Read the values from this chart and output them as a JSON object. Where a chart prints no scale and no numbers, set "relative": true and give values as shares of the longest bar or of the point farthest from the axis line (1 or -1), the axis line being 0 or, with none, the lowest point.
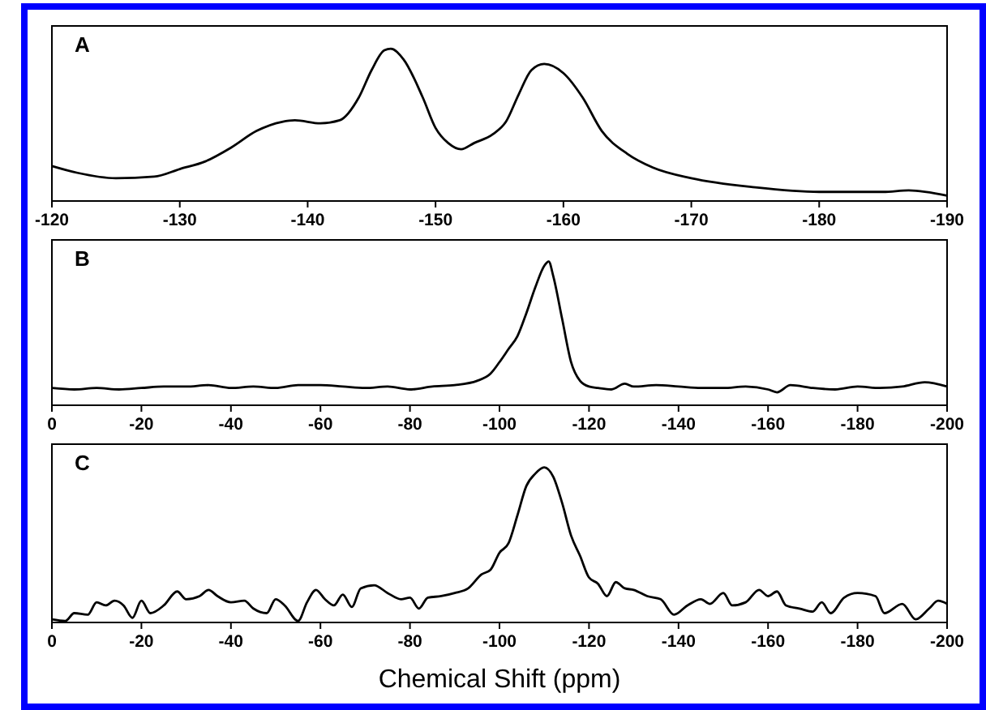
{
  "chart_data": [
    {
      "type": "line",
      "title": "A",
      "relative": true,
      "xlim": [
        -120,
        -190
      ],
      "xticks": [
        -120,
        -130,
        -140,
        -150,
        -160,
        -170,
        -180,
        -190
      ],
      "grid": false,
      "series": [
        {
          "color": "#000000",
          "x": [
            -120,
            -122,
            -125,
            -128,
            -130,
            -132,
            -134,
            -136,
            -138,
            -139,
            -141,
            -142.5,
            -144,
            -145,
            -146,
            -146.5,
            -147.5,
            -149,
            -150,
            -151,
            -152,
            -153,
            -154.5,
            -155.5,
            -156.5,
            -157.5,
            -158.5,
            -160,
            -161.5,
            -163,
            -165,
            -167,
            -170,
            -175,
            -180,
            -185,
            -187,
            -190
          ],
          "values": [
            0.23,
            0.185,
            0.15,
            0.16,
            0.21,
            0.26,
            0.35,
            0.46,
            0.52,
            0.53,
            0.51,
            0.53,
            0.68,
            0.86,
            0.99,
            1,
            0.93,
            0.68,
            0.48,
            0.38,
            0.34,
            0.38,
            0.44,
            0.52,
            0.7,
            0.86,
            0.9,
            0.84,
            0.68,
            0.46,
            0.31,
            0.22,
            0.15,
            0.09,
            0.06,
            0.06,
            0.07,
            0.035
          ]
        }
      ]
    },
    {
      "type": "line",
      "title": "B",
      "relative": true,
      "xlim": [
        0,
        -200
      ],
      "xticks": [
        0,
        -20,
        -40,
        -60,
        -80,
        -100,
        -120,
        -140,
        -160,
        -180,
        -200
      ],
      "grid": false,
      "series": [
        {
          "color": "#000000",
          "x": [
            0,
            -5,
            -10,
            -15,
            -20,
            -25,
            -30,
            -35,
            -40,
            -45,
            -50,
            -55,
            -60,
            -65,
            -70,
            -75,
            -80,
            -85,
            -90,
            -95,
            -98,
            -100,
            -102,
            -104,
            -106,
            -108,
            -110,
            -111,
            -112,
            -114,
            -116,
            -118,
            -120,
            -122,
            -125,
            -128,
            -130,
            -135,
            -140,
            -145,
            -150,
            -155,
            -160,
            -162,
            -165,
            -170,
            -175,
            -180,
            -185,
            -190,
            -195,
            -200
          ],
          "values": [
            0.12,
            0.11,
            0.12,
            0.11,
            0.12,
            0.13,
            0.13,
            0.14,
            0.12,
            0.13,
            0.12,
            0.14,
            0.14,
            0.13,
            0.12,
            0.13,
            0.11,
            0.13,
            0.14,
            0.17,
            0.22,
            0.3,
            0.39,
            0.48,
            0.64,
            0.82,
            0.97,
            1,
            0.9,
            0.6,
            0.3,
            0.17,
            0.13,
            0.12,
            0.11,
            0.15,
            0.13,
            0.14,
            0.13,
            0.12,
            0.12,
            0.13,
            0.11,
            0.09,
            0.14,
            0.12,
            0.11,
            0.13,
            0.12,
            0.13,
            0.16,
            0.13
          ]
        }
      ]
    },
    {
      "type": "line",
      "title": "C",
      "xlabel": "Chemical Shift (ppm)",
      "relative": true,
      "xlim": [
        0,
        -200
      ],
      "xticks": [
        0,
        -20,
        -40,
        -60,
        -80,
        -100,
        -120,
        -140,
        -160,
        -180,
        -200
      ],
      "grid": false,
      "series": [
        {
          "color": "#000000",
          "x": [
            0,
            -3,
            -5,
            -8,
            -10,
            -12,
            -14,
            -16,
            -18,
            -20,
            -22,
            -25,
            -28,
            -30,
            -33,
            -35,
            -37,
            -40,
            -43,
            -45,
            -48,
            -50,
            -52,
            -55,
            -57,
            -59,
            -61,
            -63,
            -65,
            -67,
            -69,
            -72,
            -75,
            -78,
            -80,
            -82,
            -84,
            -87,
            -90,
            -93,
            -96,
            -98,
            -100,
            -102,
            -104,
            -106,
            -108,
            -110,
            -112,
            -114,
            -116,
            -118,
            -120,
            -122,
            -124,
            -126,
            -128,
            -130,
            -133,
            -136,
            -139,
            -142,
            -145,
            -147,
            -150,
            -152,
            -155,
            -158,
            -160,
            -162,
            -164,
            -167,
            -170,
            -172,
            -174,
            -177,
            -180,
            -184,
            -186,
            -190,
            -193,
            -196,
            -198,
            -200
          ],
          "values": [
            0.02,
            0.01,
            0.06,
            0.05,
            0.13,
            0.11,
            0.14,
            0.11,
            0.03,
            0.14,
            0.06,
            0.11,
            0.2,
            0.15,
            0.17,
            0.21,
            0.17,
            0.13,
            0.14,
            0.09,
            0.06,
            0.15,
            0.11,
            0.01,
            0.13,
            0.21,
            0.15,
            0.11,
            0.18,
            0.1,
            0.22,
            0.24,
            0.19,
            0.15,
            0.16,
            0.09,
            0.16,
            0.17,
            0.19,
            0.22,
            0.31,
            0.34,
            0.45,
            0.51,
            0.69,
            0.88,
            0.96,
            1,
            0.94,
            0.77,
            0.56,
            0.43,
            0.29,
            0.25,
            0.17,
            0.26,
            0.22,
            0.21,
            0.17,
            0.15,
            0.05,
            0.11,
            0.15,
            0.12,
            0.19,
            0.11,
            0.13,
            0.21,
            0.17,
            0.2,
            0.11,
            0.09,
            0.07,
            0.13,
            0.06,
            0.16,
            0.19,
            0.17,
            0.06,
            0.12,
            0.02,
            0.09,
            0.14,
            0.12
          ]
        }
      ]
    }
  ]
}
